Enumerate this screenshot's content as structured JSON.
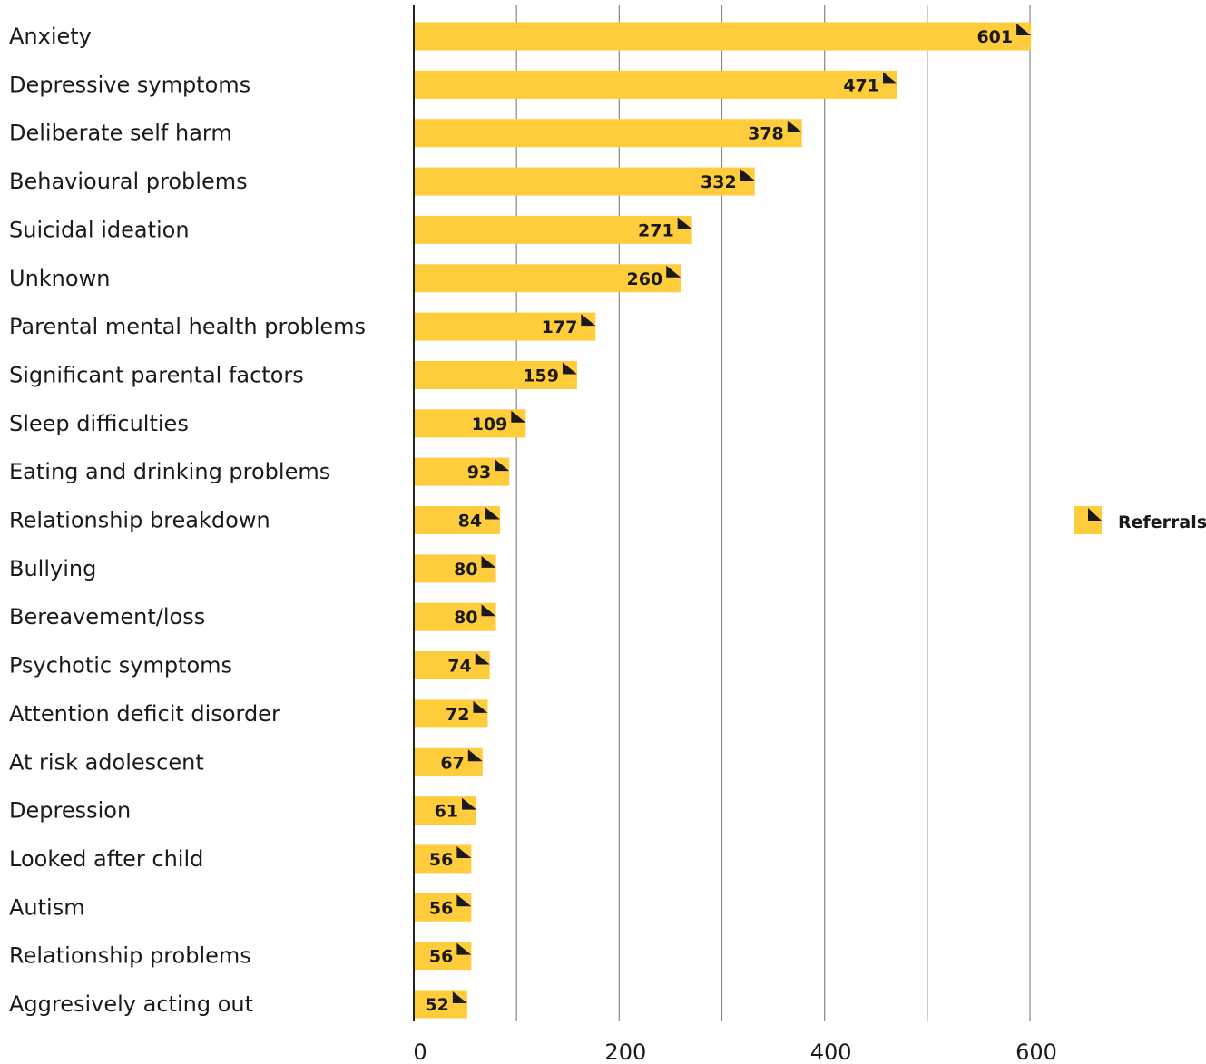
{
  "chart_data": {
    "type": "bar",
    "orientation": "horizontal",
    "categories": [
      "Anxiety",
      "Depressive symptoms",
      "Deliberate self harm",
      "Behavioural problems",
      "Suicidal ideation",
      "Unknown",
      "Parental mental health problems",
      "Significant parental factors",
      "Sleep difficulties",
      "Eating and drinking problems",
      "Relationship breakdown",
      "Bullying",
      "Bereavement/loss",
      "Psychotic symptoms",
      "Attention deficit disorder",
      "At risk adolescent",
      "Depression",
      "Looked after child",
      "Autism",
      "Relationship problems",
      "Aggresively acting out"
    ],
    "series": [
      {
        "name": "Referrals",
        "values": [
          601,
          471,
          378,
          332,
          271,
          260,
          177,
          159,
          109,
          93,
          84,
          80,
          80,
          74,
          72,
          67,
          61,
          56,
          56,
          56,
          52
        ]
      }
    ],
    "data_labels": [
      "601",
      "471",
      "378",
      "332",
      "271",
      "260",
      "177",
      "159",
      "109",
      "93",
      "84",
      "80",
      "80",
      "74",
      "72",
      "67",
      "61",
      "56",
      "56",
      "56",
      "52"
    ],
    "xlim": [
      0,
      650
    ],
    "x_ticks": [
      0,
      200,
      400,
      600
    ],
    "x_tick_labels": [
      "0",
      "200",
      "400",
      "600"
    ],
    "gridlines": [
      100,
      200,
      300,
      400,
      500,
      600
    ],
    "grid": true,
    "legend": {
      "position": "right",
      "entries": [
        "Referrals"
      ]
    },
    "colors": {
      "bar": "#FFCD3C",
      "marker": "#1a1a1a",
      "grid": "#888888",
      "axis": "#222222"
    }
  }
}
